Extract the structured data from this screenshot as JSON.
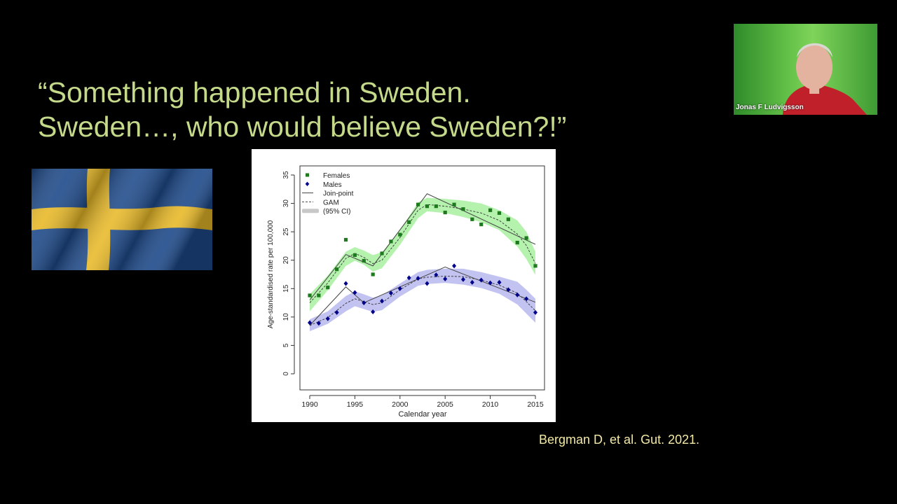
{
  "slide": {
    "quote_line1": "“Something happened in Sweden.",
    "quote_line2": "Sweden…, who would believe Sweden?!”",
    "citation": "Bergman D, et al. Gut. 2021."
  },
  "video": {
    "participant_name": "Jonas F Ludvigsson"
  },
  "colors": {
    "quote_text": "#c5d98a",
    "citation_text": "#f3e9a6",
    "females": "#1f7a1f",
    "females_band": "#a8f0a0",
    "males": "#00008b",
    "males_band": "#b8b8f0"
  },
  "chart_data": {
    "type": "scatter",
    "xlabel": "Calendar year",
    "ylabel": "Age-standardised rate per 100,000",
    "xlim": [
      1989,
      2016
    ],
    "ylim": [
      0,
      35
    ],
    "xticks": [
      1990,
      1995,
      2000,
      2005,
      2010,
      2015
    ],
    "yticks": [
      0,
      5,
      10,
      15,
      20,
      25,
      30,
      35
    ],
    "legend": {
      "position": "top-left",
      "entries": [
        "Females",
        "Males",
        "Join-point",
        "GAM",
        "(95% CI)"
      ]
    },
    "series": [
      {
        "name": "Females",
        "marker": "square",
        "x": [
          1990,
          1991,
          1992,
          1993,
          1994,
          1995,
          1996,
          1997,
          1998,
          1999,
          2000,
          2001,
          2002,
          2003,
          2004,
          2005,
          2006,
          2007,
          2008,
          2009,
          2010,
          2011,
          2012,
          2013,
          2014,
          2015
        ],
        "values": [
          13.8,
          13.8,
          15.2,
          18.4,
          23.6,
          20.9,
          19.9,
          17.5,
          21.2,
          23.3,
          24.5,
          26.7,
          29.8,
          29.5,
          29.5,
          28.4,
          29.8,
          29.0,
          27.2,
          26.3,
          28.8,
          28.3,
          27.2,
          23.1,
          23.9,
          19.0
        ],
        "joinpoint": {
          "x": [
            1990,
            1994,
            1997,
            2003,
            2015
          ],
          "y": [
            13.0,
            21.0,
            19.0,
            31.7,
            22.8
          ]
        },
        "gam": {
          "x": [
            1990,
            1992,
            1994,
            1995,
            1996,
            1997,
            1998,
            2000,
            2002,
            2003,
            2005,
            2007,
            2009,
            2011,
            2013,
            2014,
            2015
          ],
          "y": [
            12.5,
            16.0,
            20.3,
            21.2,
            20.5,
            19.4,
            20.0,
            24.0,
            28.8,
            29.8,
            29.5,
            29.0,
            28.3,
            27.0,
            24.6,
            22.6,
            19.4
          ]
        },
        "ci_upper": [
          14.0,
          17.3,
          21.5,
          22.3,
          21.7,
          20.9,
          21.4,
          25.3,
          30.2,
          31.0,
          30.8,
          30.5,
          30.0,
          28.8,
          27.0,
          25.0,
          21.5
        ],
        "ci_lower": [
          11.0,
          14.7,
          19.0,
          19.9,
          19.2,
          18.0,
          18.6,
          22.7,
          27.4,
          28.6,
          28.3,
          27.6,
          26.7,
          25.3,
          22.4,
          20.2,
          17.4
        ]
      },
      {
        "name": "Males",
        "marker": "diamond",
        "x": [
          1990,
          1991,
          1992,
          1993,
          1994,
          1995,
          1996,
          1997,
          1998,
          1999,
          2000,
          2001,
          2002,
          2003,
          2004,
          2005,
          2006,
          2007,
          2008,
          2009,
          2010,
          2011,
          2012,
          2013,
          2014,
          2015
        ],
        "values": [
          9.0,
          8.9,
          9.7,
          10.8,
          15.9,
          14.3,
          12.5,
          10.9,
          12.8,
          14.2,
          15.0,
          16.9,
          16.8,
          15.9,
          17.4,
          16.7,
          19.0,
          16.6,
          16.1,
          16.5,
          16.0,
          16.1,
          14.8,
          13.9,
          13.2,
          10.8
        ],
        "joinpoint": {
          "x": [
            1990,
            1994,
            1996,
            2005,
            2015
          ],
          "y": [
            8.5,
            15.3,
            12.5,
            18.8,
            12.6
          ]
        },
        "gam": {
          "x": [
            1990,
            1992,
            1994,
            1995,
            1996,
            1997,
            1998,
            2000,
            2002,
            2003,
            2005,
            2007,
            2009,
            2011,
            2013,
            2014,
            2015
          ],
          "y": [
            8.5,
            9.9,
            12.4,
            13.2,
            12.7,
            12.2,
            12.5,
            14.8,
            16.7,
            17.0,
            17.2,
            17.1,
            16.5,
            15.6,
            14.2,
            12.7,
            11.1
          ]
        },
        "ci_upper": [
          9.6,
          11.0,
          13.7,
          14.5,
          14.0,
          13.4,
          13.8,
          15.9,
          17.9,
          18.3,
          18.5,
          18.5,
          17.9,
          17.1,
          16.2,
          14.8,
          13.2
        ],
        "ci_lower": [
          7.5,
          8.8,
          11.0,
          11.9,
          11.4,
          10.9,
          11.2,
          13.6,
          15.5,
          15.8,
          16.0,
          15.7,
          15.1,
          14.1,
          12.2,
          10.6,
          9.0
        ]
      }
    ]
  }
}
